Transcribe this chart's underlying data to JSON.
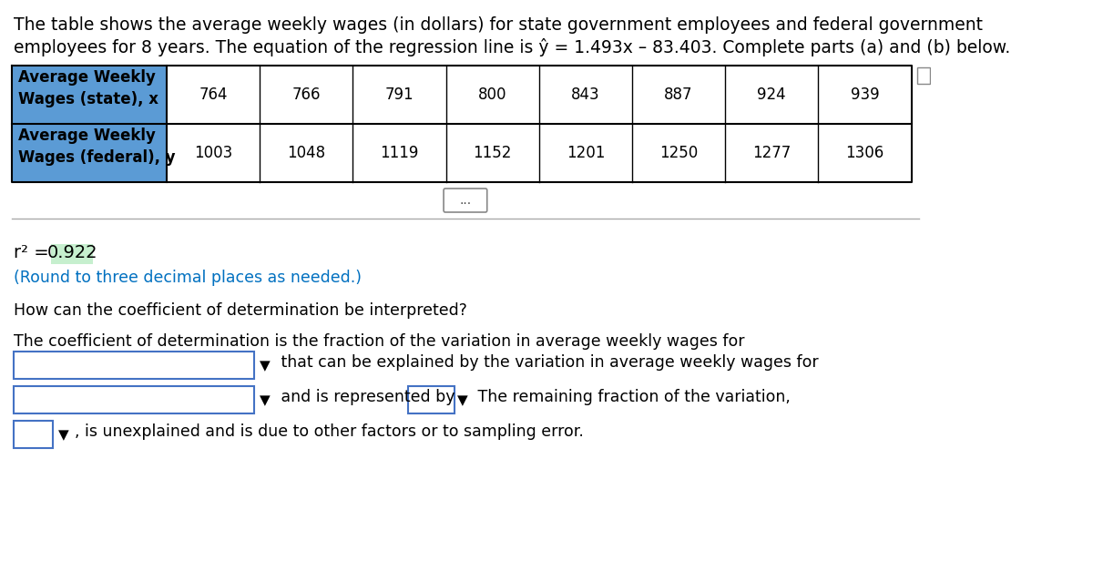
{
  "title_line1": "The table shows the average weekly wages (in dollars) for state government employees and federal government",
  "title_line2": "employees for 8 years. The equation of the regression line is ŷ = 1.493x – 83.403. Complete parts (a) and (b) below.",
  "row1_header": "Average Weekly\nWages (state), x",
  "row2_header": "Average Weekly\nWages (federal), y",
  "row1_values": [
    764,
    766,
    791,
    800,
    843,
    887,
    924,
    939
  ],
  "row2_values": [
    1003,
    1048,
    1119,
    1152,
    1201,
    1250,
    1277,
    1306
  ],
  "header_bg": "#5b9bd5",
  "row2_header_bg": "#5b9bd5",
  "table_border_color": "#000000",
  "r2_label": "r² = ",
  "r2_value": "0.922",
  "r2_highlight": "#c6efce",
  "round_note": "(Round to three decimal places as needed.)",
  "round_note_color": "#0070c0",
  "question_text": "How can the coefficient of determination be interpreted?",
  "interpretation_text": "The coefficient of determination is the fraction of the variation in average weekly wages for",
  "line2_text": " that can be explained by the variation in average weekly wages for",
  "line3_text": " and is represented by",
  "line3b_text": " The remaining fraction of the variation,",
  "line4_text": ", is unexplained and is due to other factors or to sampling error.",
  "bg_color": "#ffffff",
  "text_color": "#000000",
  "dropdown_bg": "#ffffff",
  "dropdown_border": "#4472c4",
  "small_icon_color": "#808080"
}
